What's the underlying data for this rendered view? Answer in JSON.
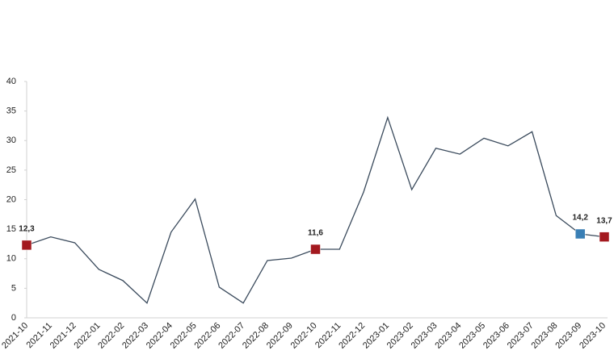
{
  "chart_data": {
    "type": "line",
    "categories": [
      "2021-10",
      "2021-11",
      "2021-12",
      "2022-01",
      "2022-02",
      "2022-03",
      "2022-04",
      "2022-05",
      "2022-06",
      "2022-07",
      "2022-08",
      "2022-09",
      "2022-10",
      "2022-11",
      "2022-12",
      "2023-01",
      "2023-02",
      "2023-03",
      "2023-04",
      "2023-05",
      "2023-06",
      "2023-07",
      "2023-08",
      "2023-09",
      "2023-10"
    ],
    "series": [
      {
        "color": "#3a4a5c",
        "values": [
          12.3,
          13.7,
          12.7,
          8.2,
          6.3,
          2.5,
          14.5,
          20.1,
          5.2,
          2.5,
          9.7,
          10.1,
          11.6,
          11.6,
          21.3,
          33.9,
          21.7,
          28.7,
          27.7,
          30.4,
          29.1,
          31.5,
          17.3,
          14.2,
          13.7
        ],
        "value_labels": [
          "12,3",
          null,
          null,
          null,
          null,
          null,
          null,
          null,
          null,
          null,
          null,
          null,
          "11,6",
          null,
          null,
          null,
          null,
          null,
          null,
          null,
          null,
          null,
          null,
          "14,2",
          "13,7"
        ],
        "marker_colors": [
          "#a3191f",
          null,
          null,
          null,
          null,
          null,
          null,
          null,
          null,
          null,
          null,
          null,
          "#a3191f",
          null,
          null,
          null,
          null,
          null,
          null,
          null,
          null,
          null,
          null,
          "#3a7fb5",
          "#a3191f"
        ]
      }
    ],
    "ylim": [
      0,
      40
    ],
    "yticks": [
      0,
      5,
      10,
      15,
      20,
      25,
      30,
      35,
      40
    ],
    "grid": false
  }
}
